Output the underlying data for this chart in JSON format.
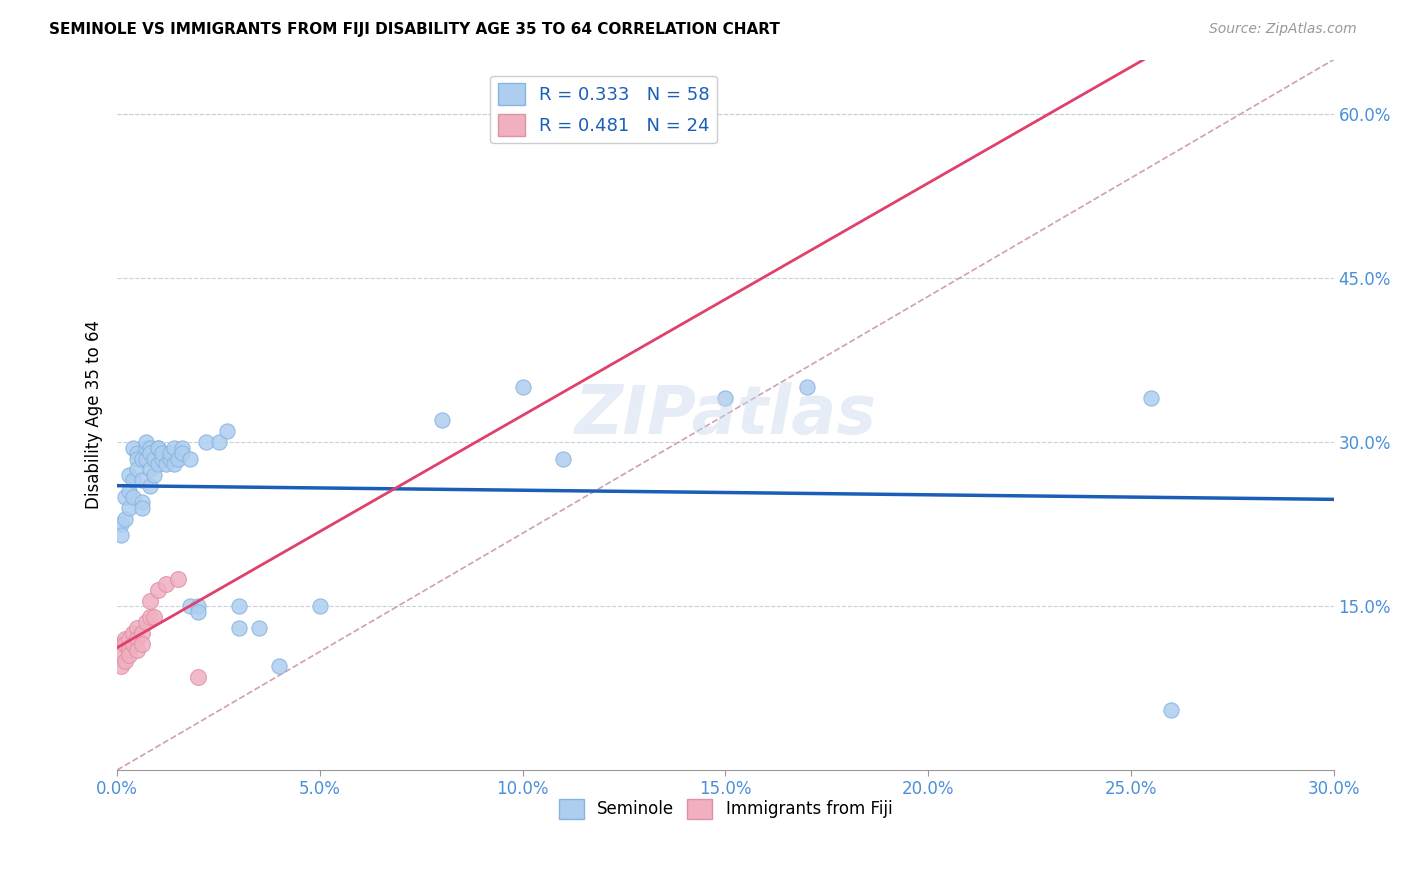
{
  "title": "SEMINOLE VS IMMIGRANTS FROM FIJI DISABILITY AGE 35 TO 64 CORRELATION CHART",
  "source": "Source: ZipAtlas.com",
  "ylabel": "Disability Age 35 to 64",
  "xmin": 0.0,
  "xmax": 0.3,
  "ymin": 0.0,
  "ymax": 0.65,
  "x_ticks": [
    0.0,
    0.05,
    0.1,
    0.15,
    0.2,
    0.25,
    0.3
  ],
  "y_ticks_right": [
    0.15,
    0.3,
    0.45,
    0.6
  ],
  "seminole_R": 0.333,
  "seminole_N": 58,
  "fiji_R": 0.481,
  "fiji_N": 24,
  "seminole_color": "#aecef0",
  "seminole_edge": "#88b4e0",
  "fiji_color": "#f0b0c0",
  "fiji_edge": "#e090a8",
  "trend_blue_color": "#1a5eb8",
  "trend_pink_color": "#e0406a",
  "ref_line_color": "#d0a0b0",
  "watermark": "ZIPatlas",
  "seminole_x": [
    0.001,
    0.001,
    0.002,
    0.002,
    0.003,
    0.003,
    0.003,
    0.004,
    0.004,
    0.004,
    0.005,
    0.005,
    0.005,
    0.006,
    0.006,
    0.006,
    0.006,
    0.007,
    0.007,
    0.007,
    0.008,
    0.008,
    0.008,
    0.008,
    0.009,
    0.009,
    0.01,
    0.01,
    0.01,
    0.011,
    0.011,
    0.012,
    0.013,
    0.013,
    0.014,
    0.014,
    0.015,
    0.016,
    0.016,
    0.018,
    0.018,
    0.02,
    0.02,
    0.022,
    0.025,
    0.027,
    0.03,
    0.03,
    0.035,
    0.04,
    0.05,
    0.08,
    0.1,
    0.11,
    0.15,
    0.17,
    0.255,
    0.26
  ],
  "seminole_y": [
    0.225,
    0.215,
    0.25,
    0.23,
    0.24,
    0.27,
    0.255,
    0.25,
    0.265,
    0.295,
    0.29,
    0.285,
    0.275,
    0.285,
    0.265,
    0.245,
    0.24,
    0.285,
    0.295,
    0.3,
    0.295,
    0.29,
    0.275,
    0.26,
    0.285,
    0.27,
    0.295,
    0.28,
    0.295,
    0.285,
    0.29,
    0.28,
    0.285,
    0.29,
    0.295,
    0.28,
    0.285,
    0.295,
    0.29,
    0.15,
    0.285,
    0.15,
    0.145,
    0.3,
    0.3,
    0.31,
    0.15,
    0.13,
    0.13,
    0.095,
    0.15,
    0.32,
    0.35,
    0.285,
    0.34,
    0.35,
    0.34,
    0.055
  ],
  "fiji_x": [
    0.001,
    0.001,
    0.001,
    0.002,
    0.002,
    0.002,
    0.003,
    0.003,
    0.003,
    0.004,
    0.004,
    0.005,
    0.005,
    0.005,
    0.006,
    0.006,
    0.007,
    0.008,
    0.008,
    0.009,
    0.01,
    0.012,
    0.015,
    0.02
  ],
  "fiji_y": [
    0.115,
    0.105,
    0.095,
    0.12,
    0.115,
    0.1,
    0.12,
    0.11,
    0.105,
    0.125,
    0.115,
    0.13,
    0.12,
    0.11,
    0.125,
    0.115,
    0.135,
    0.155,
    0.14,
    0.14,
    0.165,
    0.17,
    0.175,
    0.085
  ]
}
